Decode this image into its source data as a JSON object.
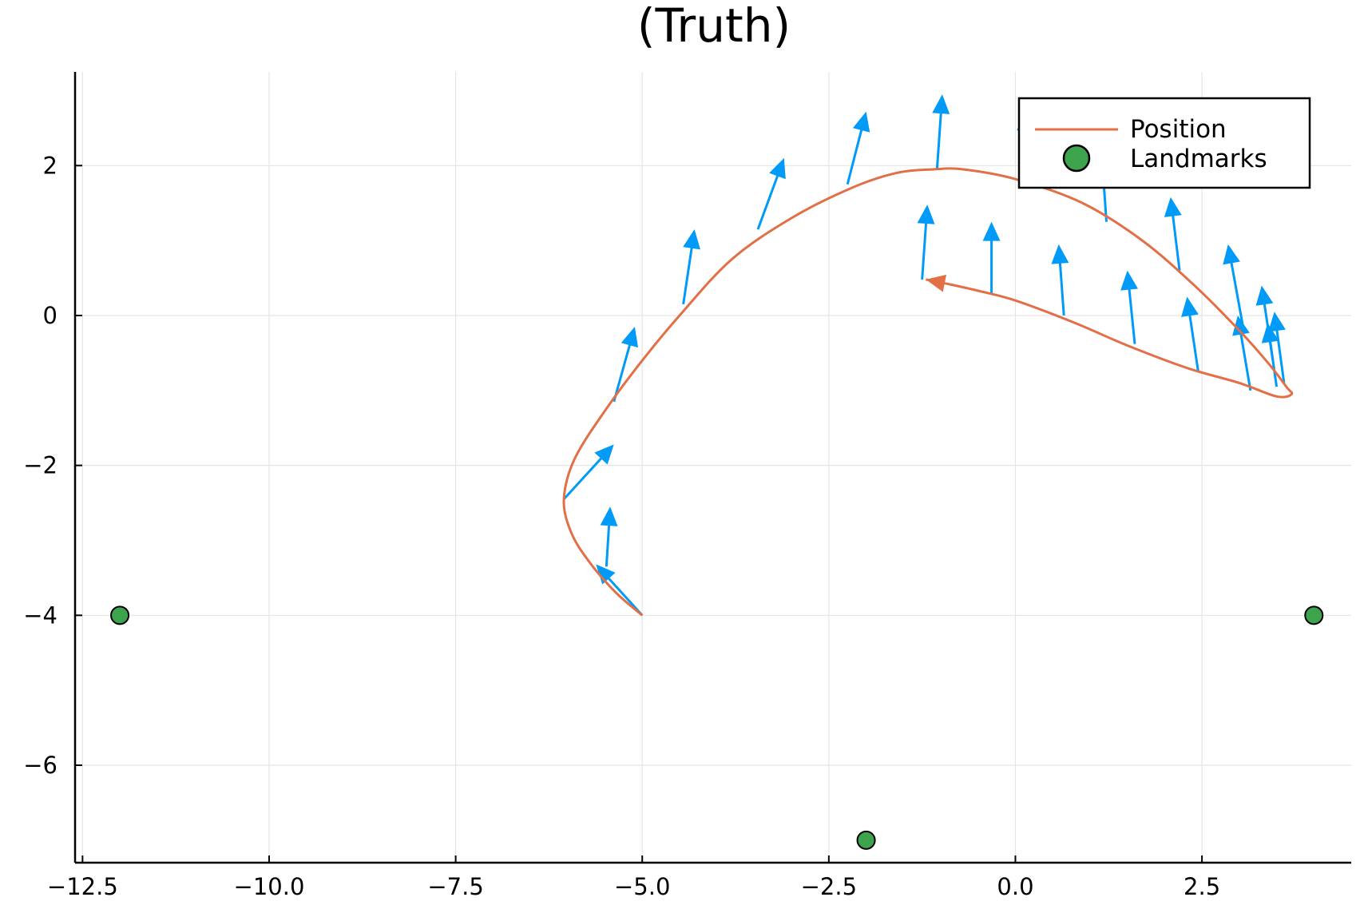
{
  "chart_data": {
    "type": "line",
    "title": "(Truth)",
    "xlabel": "",
    "ylabel": "",
    "xlim": [
      -12.6,
      4.5
    ],
    "ylim": [
      -7.3,
      3.25
    ],
    "xticks": [
      -12.5,
      -10.0,
      -7.5,
      -5.0,
      -2.5,
      0.0,
      2.5
    ],
    "xtick_labels": [
      "−12.5",
      "−10.0",
      "−7.5",
      "−5.0",
      "−2.5",
      "0.0",
      "2.5"
    ],
    "yticks": [
      -6,
      -4,
      -2,
      0,
      2
    ],
    "ytick_labels": [
      "−6",
      "−4",
      "−2",
      "0",
      "2"
    ],
    "grid": true,
    "legend_position": "top-right",
    "colors": {
      "position": "#e26f46",
      "landmarks": "#3da44d",
      "heading": "#009af9"
    },
    "series": [
      {
        "name": "Position",
        "type": "line",
        "x": [
          -5.0,
          -5.35,
          -5.7,
          -5.95,
          -6.05,
          -5.9,
          -5.45,
          -5.0,
          -4.5,
          -3.8,
          -3.0,
          -2.2,
          -1.6,
          -1.1,
          -0.7,
          0.0,
          0.9,
          1.7,
          2.4,
          3.0,
          3.4,
          3.63,
          3.7,
          3.5,
          3.0,
          2.3,
          1.5,
          0.8,
          0.0,
          -0.5,
          -0.9,
          -1.2
        ],
        "y": [
          -4.0,
          -3.7,
          -3.3,
          -2.9,
          -2.45,
          -1.9,
          -1.2,
          -0.6,
          0.0,
          0.75,
          1.3,
          1.7,
          1.9,
          1.95,
          1.95,
          1.82,
          1.5,
          1.0,
          0.4,
          -0.2,
          -0.65,
          -0.95,
          -1.05,
          -1.08,
          -0.9,
          -0.7,
          -0.4,
          -0.1,
          0.2,
          0.33,
          0.42,
          0.48
        ],
        "end_arrow": true
      },
      {
        "name": "Landmarks",
        "type": "scatter",
        "x": [
          -12.0,
          -2.0,
          4.0
        ],
        "y": [
          -4.0,
          -7.0,
          -4.0
        ]
      }
    ],
    "heading_arrows": [
      {
        "x0": -5.0,
        "y0": -4.0,
        "x1": -5.62,
        "y1": -3.32
      },
      {
        "x0": -5.48,
        "y0": -3.35,
        "x1": -5.43,
        "y1": -2.55
      },
      {
        "x0": -6.05,
        "y0": -2.45,
        "x1": -5.38,
        "y1": -1.72
      },
      {
        "x0": -5.38,
        "y0": -1.15,
        "x1": -5.1,
        "y1": -0.15
      },
      {
        "x0": -4.45,
        "y0": 0.15,
        "x1": -4.3,
        "y1": 1.15
      },
      {
        "x0": -3.45,
        "y0": 1.15,
        "x1": -3.1,
        "y1": 2.1
      },
      {
        "x0": -2.25,
        "y0": 1.75,
        "x1": -2.0,
        "y1": 2.72
      },
      {
        "x0": -1.05,
        "y0": 1.95,
        "x1": -0.98,
        "y1": 2.95
      },
      {
        "x0": 0.1,
        "y0": 1.82,
        "x1": 0.15,
        "y1": 2.72
      },
      {
        "x0": 1.22,
        "y0": 1.25,
        "x1": 1.15,
        "y1": 2.25
      },
      {
        "x0": 2.2,
        "y0": 0.6,
        "x1": 2.08,
        "y1": 1.58
      },
      {
        "x0": 3.05,
        "y0": -0.15,
        "x1": 2.85,
        "y1": 0.95
      },
      {
        "x0": 3.45,
        "y0": -0.6,
        "x1": 3.3,
        "y1": 0.4
      },
      {
        "x0": 3.6,
        "y0": -0.9,
        "x1": 3.47,
        "y1": 0.05
      },
      {
        "x0": 3.5,
        "y0": -0.95,
        "x1": 3.38,
        "y1": -0.1
      },
      {
        "x0": 3.15,
        "y0": -1.0,
        "x1": 2.98,
        "y1": 0.0
      },
      {
        "x0": 2.45,
        "y0": -0.75,
        "x1": 2.3,
        "y1": 0.25
      },
      {
        "x0": 1.6,
        "y0": -0.38,
        "x1": 1.5,
        "y1": 0.6
      },
      {
        "x0": 0.65,
        "y0": 0.0,
        "x1": 0.58,
        "y1": 0.95
      },
      {
        "x0": -0.32,
        "y0": 0.3,
        "x1": -0.32,
        "y1": 1.25
      },
      {
        "x0": -1.25,
        "y0": 0.48,
        "x1": -1.18,
        "y1": 1.48
      }
    ]
  }
}
